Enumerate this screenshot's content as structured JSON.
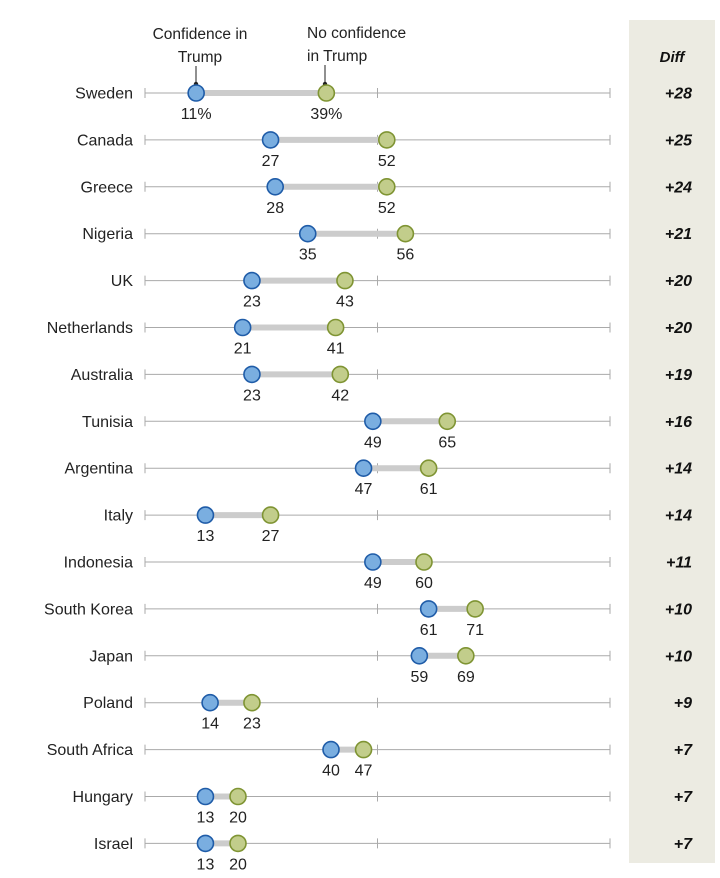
{
  "chart_data": {
    "type": "dot",
    "xlim": [
      0,
      100
    ],
    "legend": {
      "confidence": "Confidence in Trump",
      "no_confidence": "No confidence in Trump"
    },
    "diff_header": "Diff",
    "colors": {
      "confidence": "#7aaee0",
      "confidence_stroke": "#1f5ca8",
      "no_confidence": "#c2cd8b",
      "no_confidence_stroke": "#7f9433",
      "connector": "#cccccc",
      "axis": "#aaaaaa",
      "diff_panel": "#ecebe2"
    },
    "rows": [
      {
        "country": "Sweden",
        "confidence": 11,
        "no_confidence": 39,
        "confidence_label": "11%",
        "no_confidence_label": "39%",
        "diff": "+28"
      },
      {
        "country": "Canada",
        "confidence": 27,
        "no_confidence": 52,
        "confidence_label": "27",
        "no_confidence_label": "52",
        "diff": "+25"
      },
      {
        "country": "Greece",
        "confidence": 28,
        "no_confidence": 52,
        "confidence_label": "28",
        "no_confidence_label": "52",
        "diff": "+24"
      },
      {
        "country": "Nigeria",
        "confidence": 35,
        "no_confidence": 56,
        "confidence_label": "35",
        "no_confidence_label": "56",
        "diff": "+21"
      },
      {
        "country": "UK",
        "confidence": 23,
        "no_confidence": 43,
        "confidence_label": "23",
        "no_confidence_label": "43",
        "diff": "+20"
      },
      {
        "country": "Netherlands",
        "confidence": 21,
        "no_confidence": 41,
        "confidence_label": "21",
        "no_confidence_label": "41",
        "diff": "+20"
      },
      {
        "country": "Australia",
        "confidence": 23,
        "no_confidence": 42,
        "confidence_label": "23",
        "no_confidence_label": "42",
        "diff": "+19"
      },
      {
        "country": "Tunisia",
        "confidence": 49,
        "no_confidence": 65,
        "confidence_label": "49",
        "no_confidence_label": "65",
        "diff": "+16"
      },
      {
        "country": "Argentina",
        "confidence": 47,
        "no_confidence": 61,
        "confidence_label": "47",
        "no_confidence_label": "61",
        "diff": "+14"
      },
      {
        "country": "Italy",
        "confidence": 13,
        "no_confidence": 27,
        "confidence_label": "13",
        "no_confidence_label": "27",
        "diff": "+14"
      },
      {
        "country": "Indonesia",
        "confidence": 49,
        "no_confidence": 60,
        "confidence_label": "49",
        "no_confidence_label": "60",
        "diff": "+11"
      },
      {
        "country": "South Korea",
        "confidence": 61,
        "no_confidence": 71,
        "confidence_label": "61",
        "no_confidence_label": "71",
        "diff": "+10"
      },
      {
        "country": "Japan",
        "confidence": 59,
        "no_confidence": 69,
        "confidence_label": "59",
        "no_confidence_label": "69",
        "diff": "+10"
      },
      {
        "country": "Poland",
        "confidence": 14,
        "no_confidence": 23,
        "confidence_label": "14",
        "no_confidence_label": "23",
        "diff": "+9"
      },
      {
        "country": "South Africa",
        "confidence": 40,
        "no_confidence": 47,
        "confidence_label": "40",
        "no_confidence_label": "47",
        "diff": "+7"
      },
      {
        "country": "Hungary",
        "confidence": 13,
        "no_confidence": 20,
        "confidence_label": "13",
        "no_confidence_label": "20",
        "diff": "+7"
      },
      {
        "country": "Israel",
        "confidence": 13,
        "no_confidence": 20,
        "confidence_label": "13",
        "no_confidence_label": "20",
        "diff": "+7"
      }
    ]
  }
}
